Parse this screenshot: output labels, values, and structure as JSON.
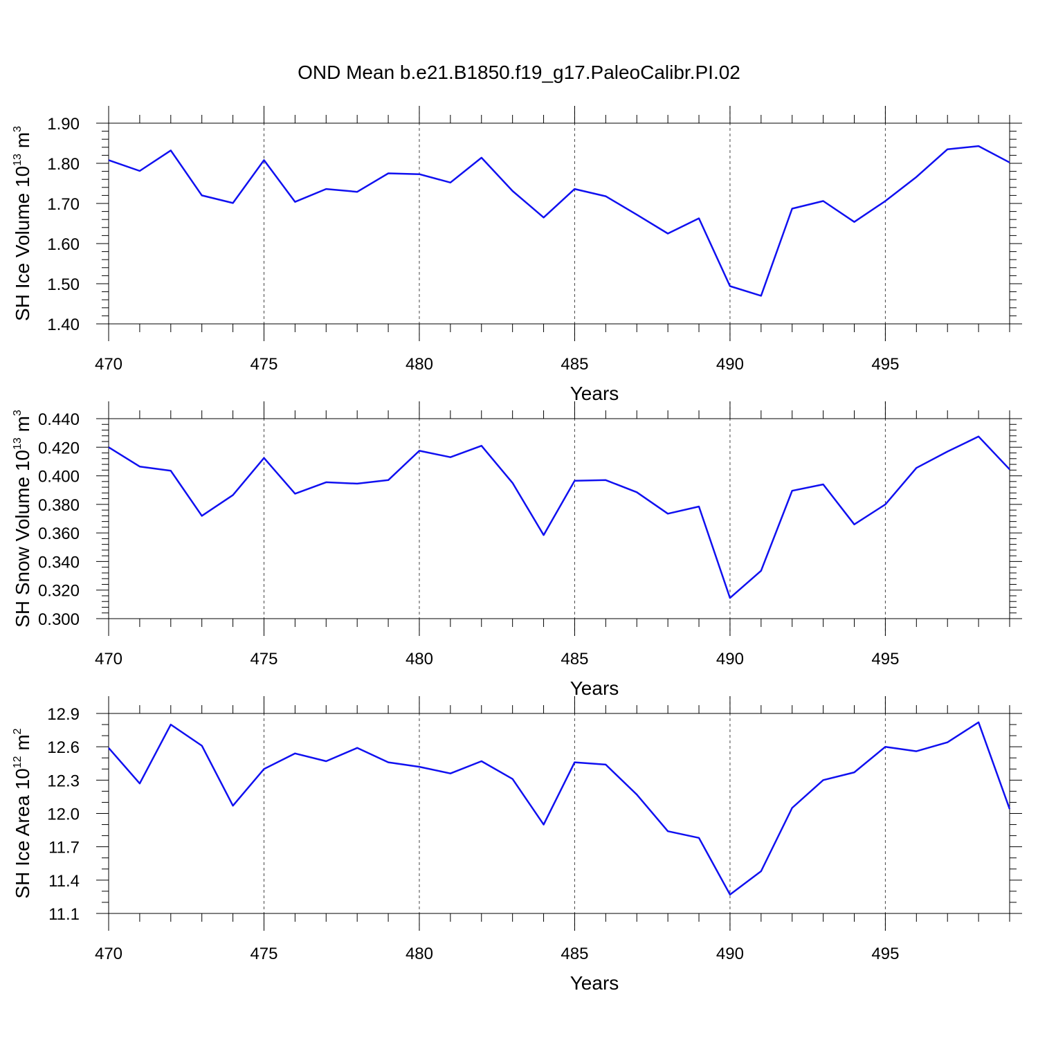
{
  "page": {
    "title": "OND Mean b.e21.B1850.f19_g17.PaleoCalibr.PI.02"
  },
  "colors": {
    "series": "#1010f0",
    "axis": "#000000",
    "grid": "#444444"
  },
  "chart_data": [
    {
      "type": "line",
      "panel": "top",
      "ylabel": {
        "main": "SH Ice Volume 10",
        "exp": "13",
        "unit": " m",
        "unit_exp": "3"
      },
      "xlabel": "Years",
      "xlim": [
        470,
        499
      ],
      "xticks": [
        470,
        475,
        480,
        485,
        490,
        495
      ],
      "xtick_labels": [
        "470",
        "475",
        "480",
        "485",
        "490",
        "495"
      ],
      "ylim": [
        1.4,
        1.9
      ],
      "yticks": [
        1.4,
        1.5,
        1.6,
        1.7,
        1.8,
        1.9
      ],
      "ytick_labels": [
        "1.40",
        "1.50",
        "1.60",
        "1.70",
        "1.80",
        "1.90"
      ],
      "y_minor_step": 0.02,
      "x": [
        470,
        471,
        472,
        473,
        474,
        475,
        476,
        477,
        478,
        479,
        480,
        481,
        482,
        483,
        484,
        485,
        486,
        487,
        488,
        489,
        490,
        491,
        492,
        493,
        494,
        495,
        496,
        497,
        498,
        499
      ],
      "values": [
        1.808,
        1.781,
        1.832,
        1.72,
        1.701,
        1.808,
        1.704,
        1.736,
        1.729,
        1.775,
        1.773,
        1.752,
        1.814,
        1.731,
        1.665,
        1.736,
        1.718,
        1.672,
        1.625,
        1.663,
        1.494,
        1.47,
        1.687,
        1.706,
        1.654,
        1.706,
        1.766,
        1.835,
        1.843,
        1.802
      ]
    },
    {
      "type": "line",
      "panel": "middle",
      "ylabel": {
        "main": "SH Snow Volume 10",
        "exp": "13",
        "unit": " m",
        "unit_exp": "3"
      },
      "xlabel": "Years",
      "xlim": [
        470,
        499
      ],
      "xticks": [
        470,
        475,
        480,
        485,
        490,
        495
      ],
      "xtick_labels": [
        "470",
        "475",
        "480",
        "485",
        "490",
        "495"
      ],
      "ylim": [
        0.3,
        0.44
      ],
      "yticks": [
        0.3,
        0.32,
        0.34,
        0.36,
        0.38,
        0.4,
        0.42,
        0.44
      ],
      "ytick_labels": [
        "0.300",
        "0.320",
        "0.340",
        "0.360",
        "0.380",
        "0.400",
        "0.420",
        "0.440"
      ],
      "y_minor_step": 0.004,
      "x": [
        470,
        471,
        472,
        473,
        474,
        475,
        476,
        477,
        478,
        479,
        480,
        481,
        482,
        483,
        484,
        485,
        486,
        487,
        488,
        489,
        490,
        491,
        492,
        493,
        494,
        495,
        496,
        497,
        498,
        499
      ],
      "values": [
        0.42,
        0.4065,
        0.4035,
        0.372,
        0.3865,
        0.4125,
        0.3875,
        0.3955,
        0.3945,
        0.397,
        0.4175,
        0.413,
        0.421,
        0.395,
        0.3585,
        0.3965,
        0.397,
        0.3885,
        0.3735,
        0.3785,
        0.3145,
        0.3335,
        0.3895,
        0.394,
        0.366,
        0.38,
        0.4055,
        0.417,
        0.4275,
        0.4045
      ]
    },
    {
      "type": "line",
      "panel": "bottom",
      "ylabel": {
        "main": "SH Ice Area 10",
        "exp": "12",
        "unit": " m",
        "unit_exp": "2"
      },
      "xlabel": "Years",
      "xlim": [
        470,
        499
      ],
      "xticks": [
        470,
        475,
        480,
        485,
        490,
        495
      ],
      "xtick_labels": [
        "470",
        "475",
        "480",
        "485",
        "490",
        "495"
      ],
      "ylim": [
        11.1,
        12.9
      ],
      "yticks": [
        11.1,
        11.4,
        11.7,
        12.0,
        12.3,
        12.6,
        12.9
      ],
      "ytick_labels": [
        "11.1",
        "11.4",
        "11.7",
        "12.0",
        "12.3",
        "12.6",
        "12.9"
      ],
      "y_minor_step": 0.1,
      "x": [
        470,
        471,
        472,
        473,
        474,
        475,
        476,
        477,
        478,
        479,
        480,
        481,
        482,
        483,
        484,
        485,
        486,
        487,
        488,
        489,
        490,
        491,
        492,
        493,
        494,
        495,
        496,
        497,
        498,
        499
      ],
      "values": [
        12.59,
        12.27,
        12.8,
        12.61,
        12.07,
        12.4,
        12.54,
        12.47,
        12.59,
        12.46,
        12.42,
        12.36,
        12.47,
        12.31,
        11.9,
        12.46,
        12.44,
        12.17,
        11.84,
        11.78,
        11.27,
        11.48,
        12.05,
        12.3,
        12.37,
        12.6,
        12.56,
        12.64,
        12.82,
        12.04
      ]
    }
  ]
}
